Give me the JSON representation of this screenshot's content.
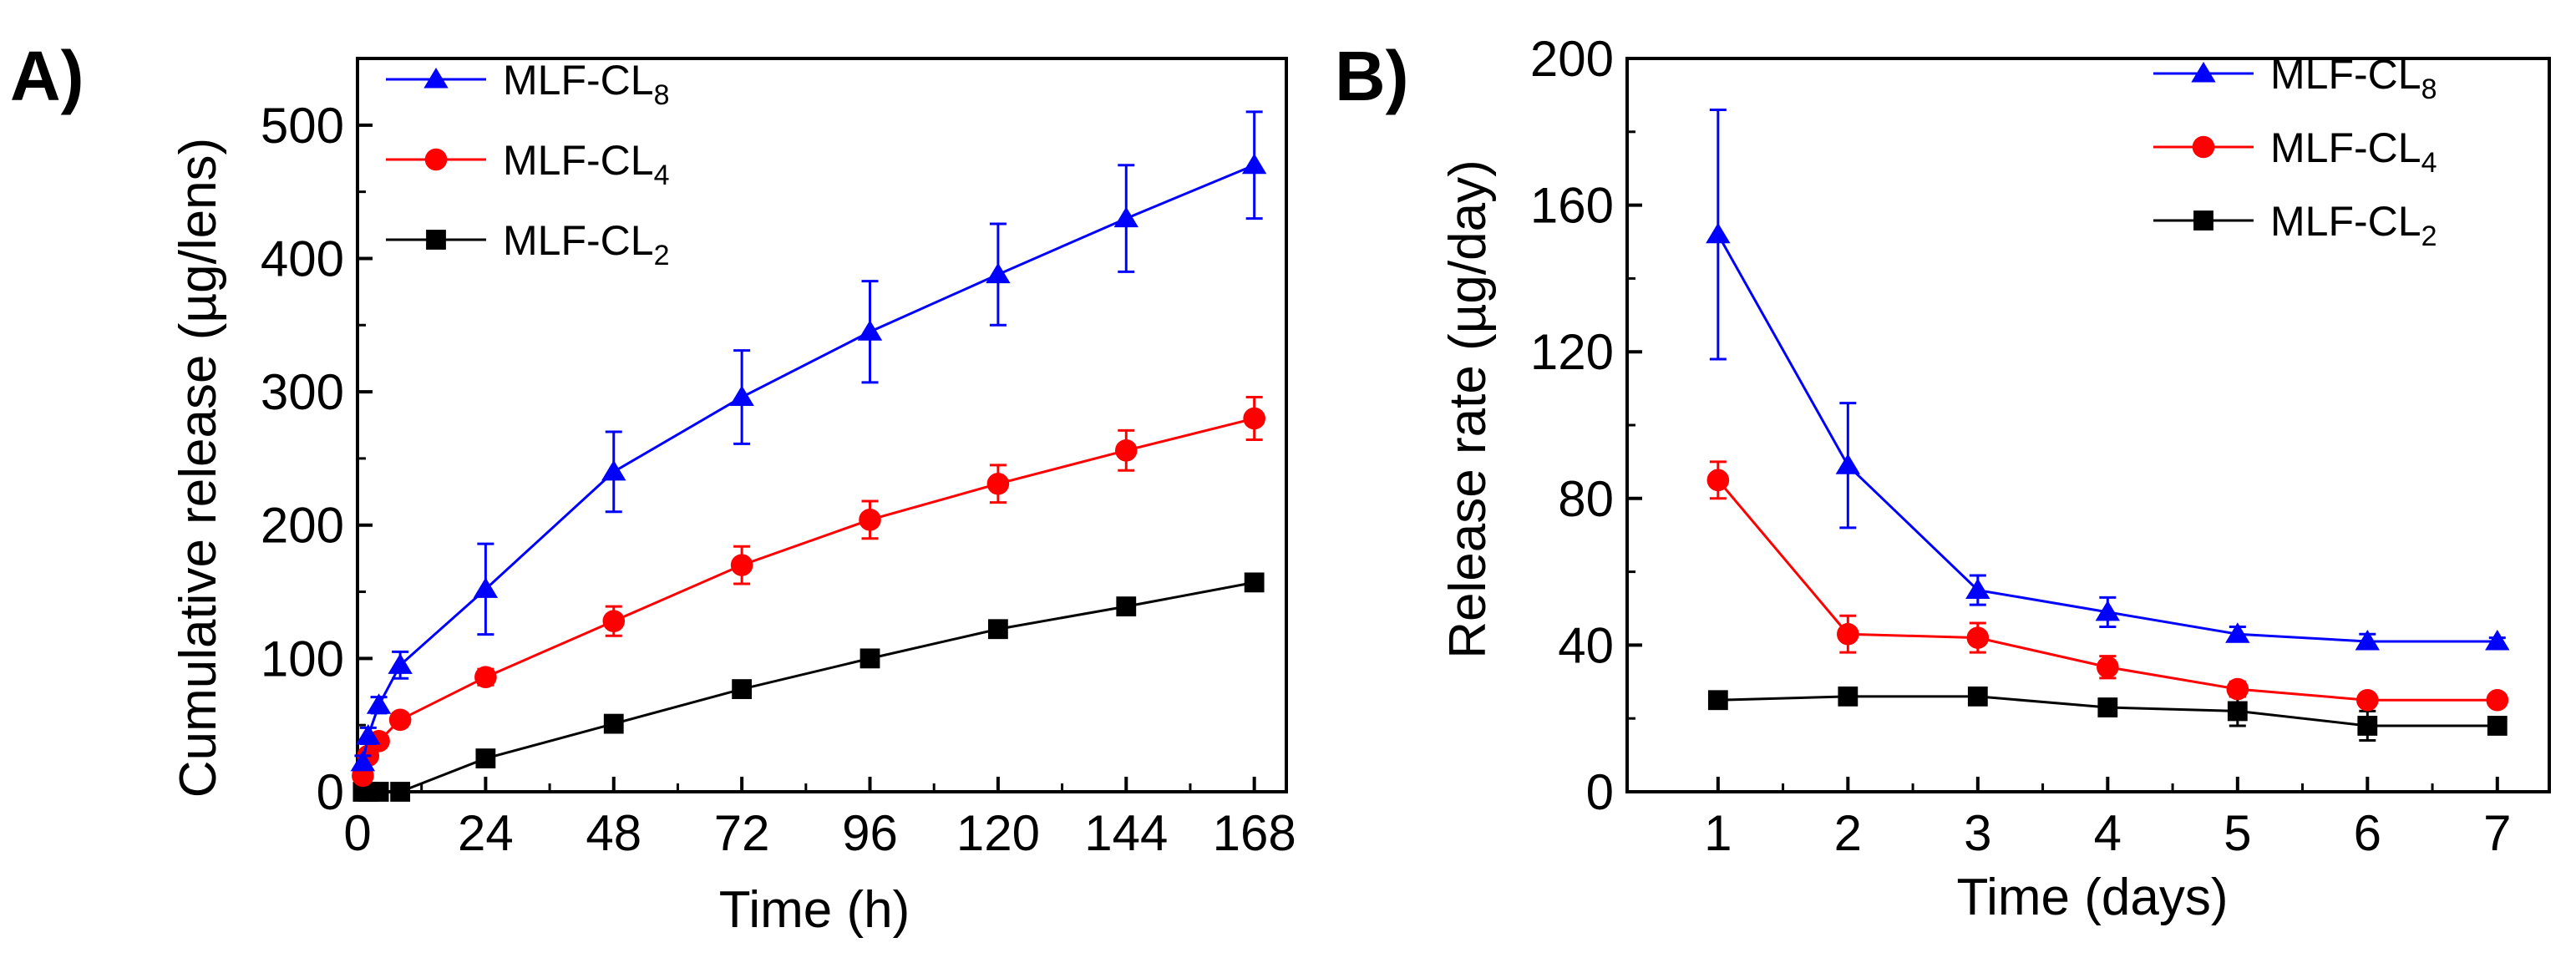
{
  "chart_data": [
    {
      "panel": "A)",
      "type": "line",
      "xlabel": "Time (h)",
      "ylabel": "Cumulative release (µg/lens)",
      "xlim": [
        0,
        174
      ],
      "ylim": [
        0,
        550
      ],
      "xticks": [
        0,
        24,
        48,
        72,
        96,
        120,
        144,
        168
      ],
      "yticks": [
        0,
        100,
        200,
        300,
        400,
        500
      ],
      "legend_position": "top-left",
      "series": [
        {
          "name": "MLF-CL8",
          "base": "MLF-CL",
          "subscript": "8",
          "color": "#0000ff",
          "marker": "triangle",
          "x": [
            1,
            2,
            4,
            8,
            24,
            48,
            72,
            96,
            120,
            144,
            168
          ],
          "y": [
            22,
            42,
            65,
            95,
            152,
            240,
            296,
            345,
            388,
            430,
            470
          ],
          "err": [
            5,
            6,
            6,
            10,
            34,
            30,
            35,
            38,
            38,
            40,
            40
          ]
        },
        {
          "name": "MLF-CL4",
          "base": "MLF-CL",
          "subscript": "4",
          "color": "#ff0000",
          "marker": "circle",
          "x": [
            1,
            2,
            4,
            8,
            24,
            48,
            72,
            96,
            120,
            144,
            168
          ],
          "y": [
            12,
            27,
            38,
            54,
            86,
            128,
            170,
            204,
            231,
            256,
            280
          ],
          "err": [
            3,
            4,
            5,
            5,
            6,
            11,
            14,
            14,
            14,
            15,
            16
          ]
        },
        {
          "name": "MLF-CL2",
          "base": "MLF-CL",
          "subscript": "2",
          "color": "#000000",
          "marker": "square",
          "x": [
            1,
            2,
            4,
            8,
            24,
            48,
            72,
            96,
            120,
            144,
            168
          ],
          "y": [
            0,
            0,
            0,
            0,
            25,
            51,
            77,
            100,
            122,
            139,
            157
          ],
          "err": [
            0,
            0,
            0,
            0,
            3,
            3,
            3,
            3,
            4,
            4,
            4
          ]
        }
      ]
    },
    {
      "panel": "B)",
      "type": "line",
      "xlabel": "Time (days)",
      "ylabel": "Release rate (µg/day)",
      "xlim": [
        0.3,
        7.4
      ],
      "ylim": [
        0,
        200
      ],
      "xticks": [
        1,
        2,
        3,
        4,
        5,
        6,
        7
      ],
      "yticks": [
        0,
        40,
        80,
        120,
        160,
        200
      ],
      "legend_position": "top-right",
      "series": [
        {
          "name": "MLF-CL8",
          "base": "MLF-CL",
          "subscript": "8",
          "color": "#0000ff",
          "marker": "triangle",
          "x": [
            1,
            2,
            3,
            4,
            5,
            6,
            7
          ],
          "y": [
            152,
            89,
            55,
            49,
            43,
            41,
            41
          ],
          "err": [
            34,
            17,
            4,
            4,
            2,
            2,
            1
          ]
        },
        {
          "name": "MLF-CL4",
          "base": "MLF-CL",
          "subscript": "4",
          "color": "#ff0000",
          "marker": "circle",
          "x": [
            1,
            2,
            3,
            4,
            5,
            6,
            7
          ],
          "y": [
            85,
            43,
            42,
            34,
            28,
            25,
            25
          ],
          "err": [
            5,
            5,
            4,
            3,
            2,
            1,
            1
          ]
        },
        {
          "name": "MLF-CL2",
          "base": "MLF-CL",
          "subscript": "2",
          "color": "#000000",
          "marker": "square",
          "x": [
            1,
            2,
            3,
            4,
            5,
            6,
            7
          ],
          "y": [
            25,
            26,
            26,
            23,
            22,
            18,
            18
          ],
          "err": [
            1,
            1,
            1,
            1,
            4,
            4,
            1
          ]
        }
      ]
    }
  ]
}
